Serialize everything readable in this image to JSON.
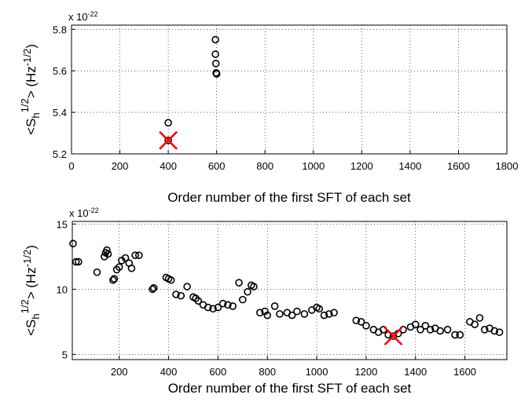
{
  "chart_data": [
    {
      "type": "scatter",
      "xlabel": "Order number of the first SFT of each set",
      "ylabel_parts": [
        "<S",
        "h",
        "1/2",
        "> (Hz",
        "-1/2",
        ")"
      ],
      "multiplier": [
        "x 10",
        "-22"
      ],
      "xlim": [
        0,
        1800
      ],
      "xticks": [
        0,
        200,
        400,
        600,
        800,
        1000,
        1200,
        1400,
        1600,
        1800
      ],
      "ylim": [
        5.2,
        5.82
      ],
      "yticks": [
        5.2,
        5.4,
        5.6,
        5.8
      ],
      "grid": true,
      "color": "#000000",
      "x": [
        400,
        400,
        595,
        595,
        597,
        598,
        600
      ],
      "values": [
        5.35,
        5.265,
        5.75,
        5.68,
        5.635,
        5.59,
        5.585
      ],
      "highlight": {
        "x": 400,
        "y": 5.265,
        "color": "#ff0000"
      }
    },
    {
      "type": "scatter",
      "xlabel": "Order number of the first SFT of each set",
      "ylabel_parts": [
        "<S",
        "h",
        "1/2",
        "> (Hz",
        "-1/2",
        ")"
      ],
      "multiplier": [
        "x 10",
        "-22"
      ],
      "xlim": [
        10,
        1770
      ],
      "xticks": [
        200,
        400,
        600,
        800,
        1000,
        1200,
        1400,
        1600
      ],
      "ylim": [
        4.6,
        15.2
      ],
      "yticks": [
        5,
        10,
        15
      ],
      "grid": true,
      "color": "#000000",
      "x": [
        13,
        25,
        35,
        110,
        140,
        145,
        150,
        155,
        175,
        180,
        190,
        200,
        210,
        225,
        240,
        250,
        265,
        280,
        335,
        340,
        390,
        400,
        410,
        430,
        450,
        475,
        500,
        510,
        520,
        540,
        560,
        580,
        600,
        620,
        640,
        660,
        685,
        700,
        720,
        735,
        745,
        770,
        790,
        800,
        830,
        850,
        880,
        900,
        920,
        950,
        980,
        1000,
        1010,
        1030,
        1050,
        1070,
        1160,
        1180,
        1200,
        1230,
        1250,
        1270,
        1290,
        1310,
        1330,
        1350,
        1380,
        1400,
        1420,
        1440,
        1460,
        1480,
        1500,
        1530,
        1560,
        1580,
        1620,
        1640,
        1660,
        1680,
        1700,
        1720,
        1740
      ],
      "values": [
        13.5,
        12.1,
        12.1,
        11.3,
        12.5,
        12.8,
        13.0,
        12.7,
        10.7,
        10.8,
        11.5,
        11.7,
        12.2,
        12.4,
        12.0,
        11.6,
        12.6,
        12.6,
        10.0,
        10.1,
        10.9,
        10.8,
        10.7,
        9.6,
        9.5,
        10.2,
        9.4,
        9.3,
        9.1,
        8.8,
        8.6,
        8.5,
        8.6,
        8.9,
        8.8,
        8.7,
        10.5,
        9.2,
        9.8,
        10.3,
        10.2,
        8.2,
        8.3,
        8.0,
        8.7,
        8.1,
        8.2,
        8.0,
        8.3,
        8.1,
        8.4,
        8.6,
        8.5,
        8.0,
        8.1,
        8.2,
        7.6,
        7.5,
        7.2,
        6.9,
        6.7,
        6.9,
        6.5,
        6.4,
        6.6,
        6.9,
        7.1,
        7.3,
        6.9,
        7.2,
        6.9,
        7.0,
        6.8,
        6.9,
        6.5,
        6.5,
        7.5,
        7.3,
        7.8,
        6.9,
        7.0,
        6.8,
        6.7
      ],
      "highlight": {
        "x": 1310,
        "y": 6.4,
        "color": "#ff0000"
      }
    }
  ]
}
